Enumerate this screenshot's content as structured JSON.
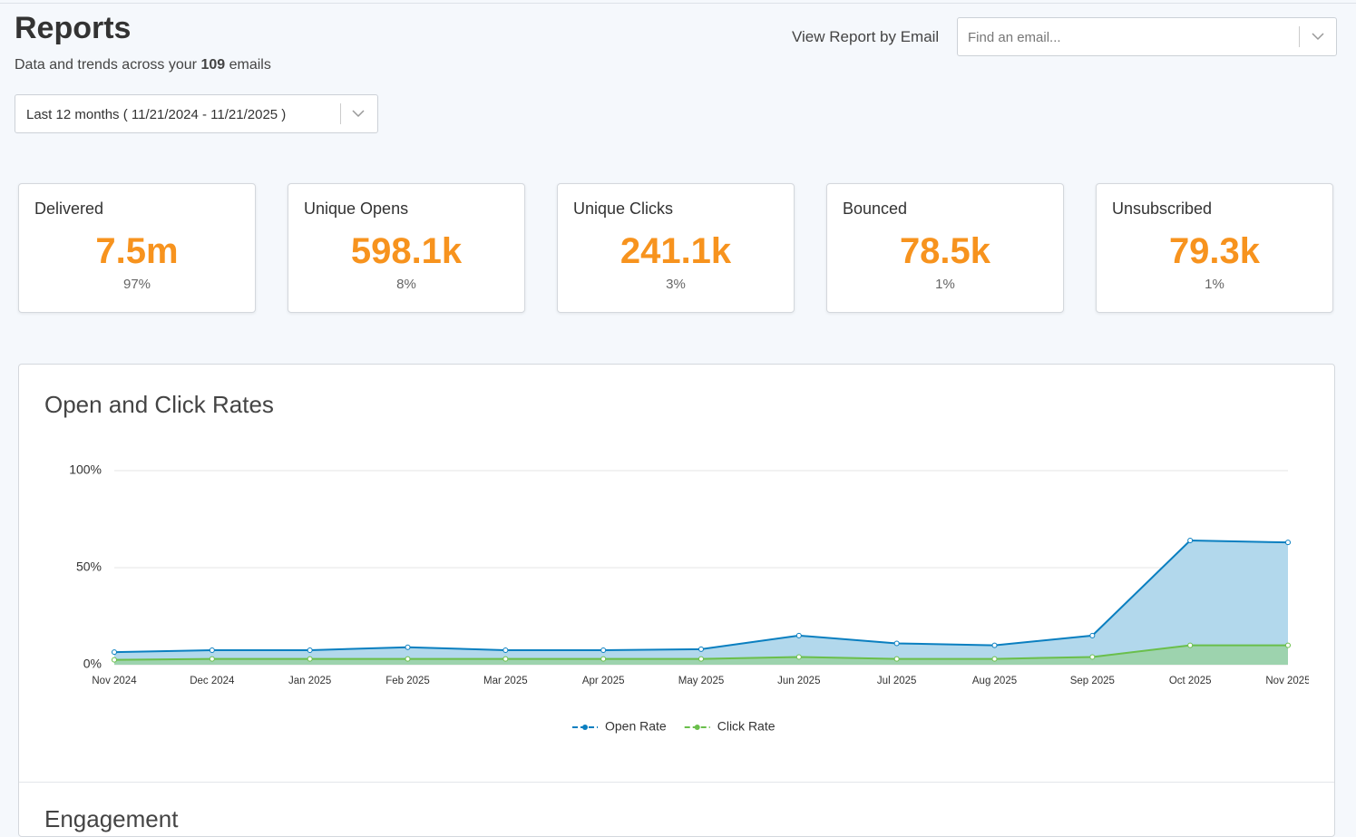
{
  "header": {
    "title": "Reports",
    "subtitle_prefix": "Data and trends across your",
    "email_count": "109",
    "subtitle_suffix": "emails",
    "date_range": "Last 12 months ( 11/21/2024 - 11/21/2025 )",
    "email_filter_label": "View Report by Email",
    "email_placeholder": "Find an email..."
  },
  "stats": [
    {
      "label": "Delivered",
      "value": "7.5m",
      "percent": "97%"
    },
    {
      "label": "Unique Opens",
      "value": "598.1k",
      "percent": "8%"
    },
    {
      "label": "Unique Clicks",
      "value": "241.1k",
      "percent": "3%"
    },
    {
      "label": "Bounced",
      "value": "78.5k",
      "percent": "1%"
    },
    {
      "label": "Unsubscribed",
      "value": "79.3k",
      "percent": "1%"
    }
  ],
  "chart_data": {
    "type": "area",
    "title": "Open and Click Rates",
    "categories": [
      "Nov 2024",
      "Dec 2024",
      "Jan 2025",
      "Feb 2025",
      "Mar 2025",
      "Apr 2025",
      "May 2025",
      "Jun 2025",
      "Jul 2025",
      "Aug 2025",
      "Sep 2025",
      "Oct 2025",
      "Nov 2025"
    ],
    "series": [
      {
        "name": "Open Rate",
        "color": "#0a7fc0",
        "fill": "#b2d8ec",
        "values": [
          6.5,
          7.5,
          7.5,
          9,
          7.5,
          7.5,
          8,
          15,
          11,
          10,
          15,
          64,
          63
        ]
      },
      {
        "name": "Click Rate",
        "color": "#6abf4b",
        "fill": "#9dd3ae",
        "values": [
          2.5,
          3,
          3,
          3,
          3,
          3,
          3,
          4,
          3,
          3,
          4,
          10,
          10
        ]
      }
    ],
    "ylim": [
      0,
      100
    ],
    "yticks": [
      {
        "value": 0,
        "label": "0%"
      },
      {
        "value": 50,
        "label": "50%"
      },
      {
        "value": 100,
        "label": "100%"
      }
    ],
    "grid": true,
    "legend": "bottom"
  },
  "engagement": {
    "title": "Engagement"
  }
}
